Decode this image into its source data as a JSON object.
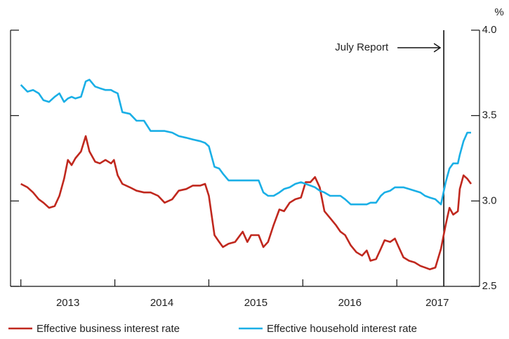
{
  "chart_data": {
    "type": "line",
    "y_unit_label": "%",
    "xlim": [
      2012.89,
      2017.88
    ],
    "ylim": [
      2.5,
      4.0
    ],
    "yticks": [
      {
        "value": 2.5,
        "label": "2.5"
      },
      {
        "value": 3.0,
        "label": "3.0"
      },
      {
        "value": 3.5,
        "label": "3.5"
      },
      {
        "value": 4.0,
        "label": "4.0"
      }
    ],
    "xtick_marks": [
      2013,
      2014,
      2015,
      2016,
      2017
    ],
    "xticks": [
      {
        "value": 2013.5,
        "label": "2013"
      },
      {
        "value": 2014.5,
        "label": "2014"
      },
      {
        "value": 2015.5,
        "label": "2015"
      },
      {
        "value": 2016.5,
        "label": "2016"
      },
      {
        "value": 2017.43,
        "label": "2017"
      }
    ],
    "annotation": {
      "text": "July Report",
      "x": 2017.5
    },
    "x": [
      2013.0,
      2013.07,
      2013.13,
      2013.19,
      2013.24,
      2013.3,
      2013.36,
      2013.41,
      2013.46,
      2013.5,
      2013.54,
      2013.58,
      2013.64,
      2013.69,
      2013.73,
      2013.79,
      2013.84,
      2013.9,
      2013.96,
      2013.99,
      2014.03,
      2014.08,
      2014.16,
      2014.23,
      2014.31,
      2014.38,
      2014.46,
      2014.53,
      2014.61,
      2014.68,
      2014.76,
      2014.83,
      2014.91,
      2014.96,
      2015.0,
      2015.06,
      2015.11,
      2015.15,
      2015.21,
      2015.28,
      2015.36,
      2015.41,
      2015.45,
      2015.53,
      2015.58,
      2015.63,
      2015.69,
      2015.75,
      2015.8,
      2015.86,
      2015.92,
      2015.98,
      2016.03,
      2016.08,
      2016.13,
      2016.18,
      2016.23,
      2016.29,
      2016.35,
      2016.4,
      2016.45,
      2016.51,
      2016.57,
      2016.63,
      2016.68,
      2016.72,
      2016.78,
      2016.83,
      2016.87,
      2016.93,
      2016.98,
      2017.02,
      2017.07,
      2017.13,
      2017.19,
      2017.25,
      2017.3,
      2017.35,
      2017.41,
      2017.47,
      2017.52,
      2017.56,
      2017.6,
      2017.65,
      2017.67,
      2017.71,
      2017.75,
      2017.79
    ],
    "series": [
      {
        "name": "Effective business interest rate",
        "color": "#c0281e",
        "values": [
          3.1,
          3.08,
          3.05,
          3.01,
          2.99,
          2.96,
          2.97,
          3.03,
          3.13,
          3.24,
          3.21,
          3.25,
          3.29,
          3.38,
          3.29,
          3.23,
          3.22,
          3.24,
          3.22,
          3.24,
          3.15,
          3.1,
          3.08,
          3.06,
          3.05,
          3.05,
          3.03,
          2.99,
          3.01,
          3.06,
          3.07,
          3.09,
          3.09,
          3.1,
          3.03,
          2.8,
          2.76,
          2.73,
          2.75,
          2.76,
          2.82,
          2.76,
          2.8,
          2.8,
          2.73,
          2.76,
          2.86,
          2.95,
          2.94,
          2.99,
          3.01,
          3.02,
          3.11,
          3.11,
          3.14,
          3.08,
          2.94,
          2.9,
          2.86,
          2.82,
          2.8,
          2.74,
          2.7,
          2.68,
          2.71,
          2.65,
          2.66,
          2.72,
          2.77,
          2.76,
          2.78,
          2.73,
          2.67,
          2.65,
          2.64,
          2.62,
          2.61,
          2.6,
          2.61,
          2.72,
          2.86,
          2.96,
          2.92,
          2.94,
          3.07,
          3.15,
          3.13,
          3.1
        ]
      },
      {
        "name": "Effective household interest rate",
        "color": "#1aafe6",
        "values": [
          3.68,
          3.64,
          3.65,
          3.63,
          3.59,
          3.58,
          3.61,
          3.63,
          3.58,
          3.6,
          3.61,
          3.6,
          3.61,
          3.7,
          3.71,
          3.67,
          3.66,
          3.65,
          3.65,
          3.64,
          3.63,
          3.52,
          3.51,
          3.47,
          3.47,
          3.41,
          3.41,
          3.41,
          3.4,
          3.38,
          3.37,
          3.36,
          3.35,
          3.34,
          3.32,
          3.2,
          3.19,
          3.16,
          3.12,
          3.12,
          3.12,
          3.12,
          3.12,
          3.12,
          3.05,
          3.03,
          3.03,
          3.05,
          3.07,
          3.08,
          3.1,
          3.11,
          3.1,
          3.09,
          3.08,
          3.06,
          3.05,
          3.03,
          3.03,
          3.03,
          3.01,
          2.98,
          2.98,
          2.98,
          2.98,
          2.99,
          2.99,
          3.03,
          3.05,
          3.06,
          3.08,
          3.08,
          3.08,
          3.07,
          3.06,
          3.05,
          3.03,
          3.02,
          3.01,
          2.98,
          3.11,
          3.19,
          3.22,
          3.22,
          3.27,
          3.35,
          3.4,
          3.4
        ]
      }
    ]
  }
}
